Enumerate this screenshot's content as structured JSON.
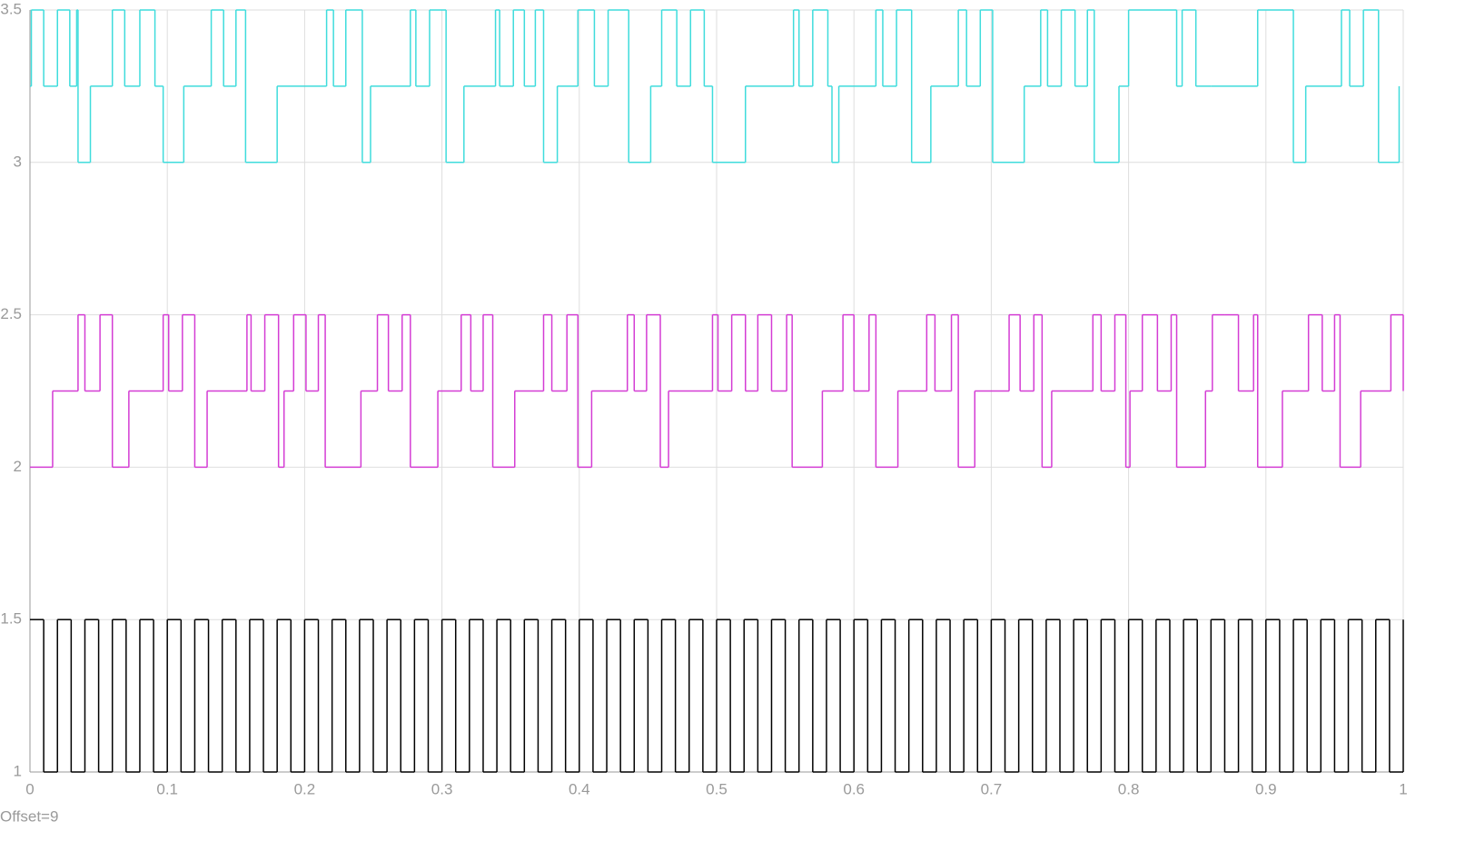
{
  "chart_data": {
    "type": "line",
    "step": "post",
    "grid": true,
    "annotation": "Offset=9",
    "xlim": [
      0,
      1
    ],
    "xticks": [
      0,
      0.1,
      0.2,
      0.3,
      0.4,
      0.5,
      0.6,
      0.7,
      0.8,
      0.9,
      1
    ],
    "ylim": [
      1,
      3.5
    ],
    "yticks": [
      1,
      1.5,
      2,
      2.5,
      3,
      3.5
    ],
    "series": [
      {
        "color": "#3fdcdc",
        "x": [
          0,
          0.001,
          0.01,
          0.02,
          0.029,
          0.034,
          0.035,
          0.044,
          0.06,
          0.069,
          0.08,
          0.091,
          0.097,
          0.112,
          0.132,
          0.141,
          0.15,
          0.157,
          0.18,
          0.216,
          0.221,
          0.23,
          0.242,
          0.248,
          0.277,
          0.281,
          0.291,
          0.303,
          0.316,
          0.339,
          0.342,
          0.352,
          0.36,
          0.368,
          0.374,
          0.384,
          0.399,
          0.411,
          0.421,
          0.436,
          0.452,
          0.46,
          0.471,
          0.481,
          0.491,
          0.497,
          0.521,
          0.556,
          0.56,
          0.57,
          0.581,
          0.584,
          0.589,
          0.616,
          0.621,
          0.631,
          0.642,
          0.656,
          0.676,
          0.682,
          0.692,
          0.701,
          0.724,
          0.736,
          0.741,
          0.751,
          0.761,
          0.77,
          0.775,
          0.793,
          0.8,
          0.835,
          0.839,
          0.849,
          0.86,
          0.894,
          0.92,
          0.929,
          0.955,
          0.961,
          0.971,
          0.982,
          0.997
        ],
        "values": [
          3.25,
          3.5,
          3.25,
          3.5,
          3.25,
          3.5,
          3,
          3.25,
          3.5,
          3.25,
          3.5,
          3.25,
          3,
          3.25,
          3.5,
          3.25,
          3.5,
          3,
          3.25,
          3.5,
          3.25,
          3.5,
          3,
          3.25,
          3.5,
          3.25,
          3.5,
          3,
          3.25,
          3.5,
          3.25,
          3.5,
          3.25,
          3.5,
          3,
          3.25,
          3.5,
          3.25,
          3.5,
          3,
          3.25,
          3.5,
          3.25,
          3.5,
          3.25,
          3,
          3.25,
          3.5,
          3.25,
          3.5,
          3.25,
          3,
          3.25,
          3.5,
          3.25,
          3.5,
          3,
          3.25,
          3.5,
          3.25,
          3.5,
          3,
          3.25,
          3.5,
          3.25,
          3.5,
          3.25,
          3.5,
          3,
          3.25,
          3.5,
          3.25,
          3.5,
          3.25,
          3.25,
          3.5,
          3,
          3.25,
          3.5,
          3.25,
          3.5,
          3,
          3.25
        ]
      },
      {
        "color": "#d43cd4",
        "x": [
          0,
          0.0165,
          0.035,
          0.04,
          0.051,
          0.06,
          0.072,
          0.097,
          0.101,
          0.111,
          0.12,
          0.129,
          0.158,
          0.161,
          0.171,
          0.181,
          0.185,
          0.192,
          0.201,
          0.21,
          0.215,
          0.241,
          0.253,
          0.261,
          0.271,
          0.277,
          0.297,
          0.314,
          0.321,
          0.33,
          0.337,
          0.353,
          0.374,
          0.38,
          0.391,
          0.399,
          0.409,
          0.435,
          0.44,
          0.449,
          0.459,
          0.465,
          0.497,
          0.501,
          0.511,
          0.521,
          0.53,
          0.54,
          0.551,
          0.555,
          0.577,
          0.592,
          0.6,
          0.611,
          0.616,
          0.632,
          0.653,
          0.659,
          0.671,
          0.676,
          0.688,
          0.713,
          0.721,
          0.731,
          0.737,
          0.744,
          0.774,
          0.78,
          0.79,
          0.798,
          0.801,
          0.81,
          0.821,
          0.831,
          0.835,
          0.856,
          0.861,
          0.87,
          0.88,
          0.891,
          0.894,
          0.912,
          0.931,
          0.941,
          0.95,
          0.954,
          0.969,
          0.991,
          1
        ],
        "values": [
          2,
          2.25,
          2.5,
          2.25,
          2.5,
          2,
          2.25,
          2.5,
          2.25,
          2.5,
          2,
          2.25,
          2.5,
          2.25,
          2.5,
          2,
          2.25,
          2.5,
          2.25,
          2.5,
          2,
          2.25,
          2.5,
          2.25,
          2.5,
          2,
          2.25,
          2.5,
          2.25,
          2.5,
          2,
          2.25,
          2.5,
          2.25,
          2.5,
          2,
          2.25,
          2.5,
          2.25,
          2.5,
          2,
          2.25,
          2.5,
          2.25,
          2.5,
          2.25,
          2.5,
          2.25,
          2.5,
          2,
          2.25,
          2.5,
          2.25,
          2.5,
          2,
          2.25,
          2.5,
          2.25,
          2.5,
          2,
          2.25,
          2.5,
          2.25,
          2.5,
          2,
          2.25,
          2.5,
          2.25,
          2.5,
          2,
          2.25,
          2.5,
          2.25,
          2.5,
          2,
          2.25,
          2.5,
          2.5,
          2.25,
          2.5,
          2,
          2.25,
          2.5,
          2.25,
          2.5,
          2,
          2.25,
          2.5,
          2.25
        ]
      },
      {
        "color": "#000000",
        "x": [
          0,
          0.01,
          0.02,
          0.03,
          0.04,
          0.05,
          0.06,
          0.07,
          0.08,
          0.09,
          0.1,
          0.11,
          0.12,
          0.13,
          0.14,
          0.15,
          0.16,
          0.17,
          0.18,
          0.19,
          0.2,
          0.21,
          0.22,
          0.23,
          0.24,
          0.25,
          0.26,
          0.27,
          0.28,
          0.29,
          0.3,
          0.31,
          0.32,
          0.33,
          0.34,
          0.35,
          0.36,
          0.37,
          0.38,
          0.39,
          0.4,
          0.41,
          0.42,
          0.43,
          0.44,
          0.45,
          0.46,
          0.47,
          0.48,
          0.49,
          0.5,
          0.51,
          0.52,
          0.53,
          0.54,
          0.55,
          0.56,
          0.57,
          0.58,
          0.59,
          0.6,
          0.61,
          0.62,
          0.63,
          0.64,
          0.65,
          0.66,
          0.67,
          0.68,
          0.69,
          0.7,
          0.71,
          0.72,
          0.73,
          0.74,
          0.75,
          0.76,
          0.77,
          0.78,
          0.79,
          0.8,
          0.81,
          0.82,
          0.83,
          0.84,
          0.85,
          0.86,
          0.87,
          0.88,
          0.89,
          0.9,
          0.91,
          0.92,
          0.93,
          0.94,
          0.95,
          0.96,
          0.97,
          0.98,
          0.99,
          1
        ],
        "values": [
          1.5,
          1,
          1.5,
          1,
          1.5,
          1,
          1.5,
          1,
          1.5,
          1,
          1.5,
          1,
          1.5,
          1,
          1.5,
          1,
          1.5,
          1,
          1.5,
          1,
          1.5,
          1,
          1.5,
          1,
          1.5,
          1,
          1.5,
          1,
          1.5,
          1,
          1.5,
          1,
          1.5,
          1,
          1.5,
          1,
          1.5,
          1,
          1.5,
          1,
          1.5,
          1,
          1.5,
          1,
          1.5,
          1,
          1.5,
          1,
          1.5,
          1,
          1.5,
          1,
          1.5,
          1,
          1.5,
          1,
          1.5,
          1,
          1.5,
          1,
          1.5,
          1,
          1.5,
          1,
          1.5,
          1,
          1.5,
          1,
          1.5,
          1,
          1.5,
          1,
          1.5,
          1,
          1.5,
          1,
          1.5,
          1,
          1.5,
          1,
          1.5,
          1,
          1.5,
          1,
          1.5,
          1,
          1.5,
          1,
          1.5,
          1,
          1.5,
          1,
          1.5,
          1,
          1.5,
          1,
          1.5,
          1,
          1.5,
          1,
          1.5
        ]
      }
    ]
  }
}
